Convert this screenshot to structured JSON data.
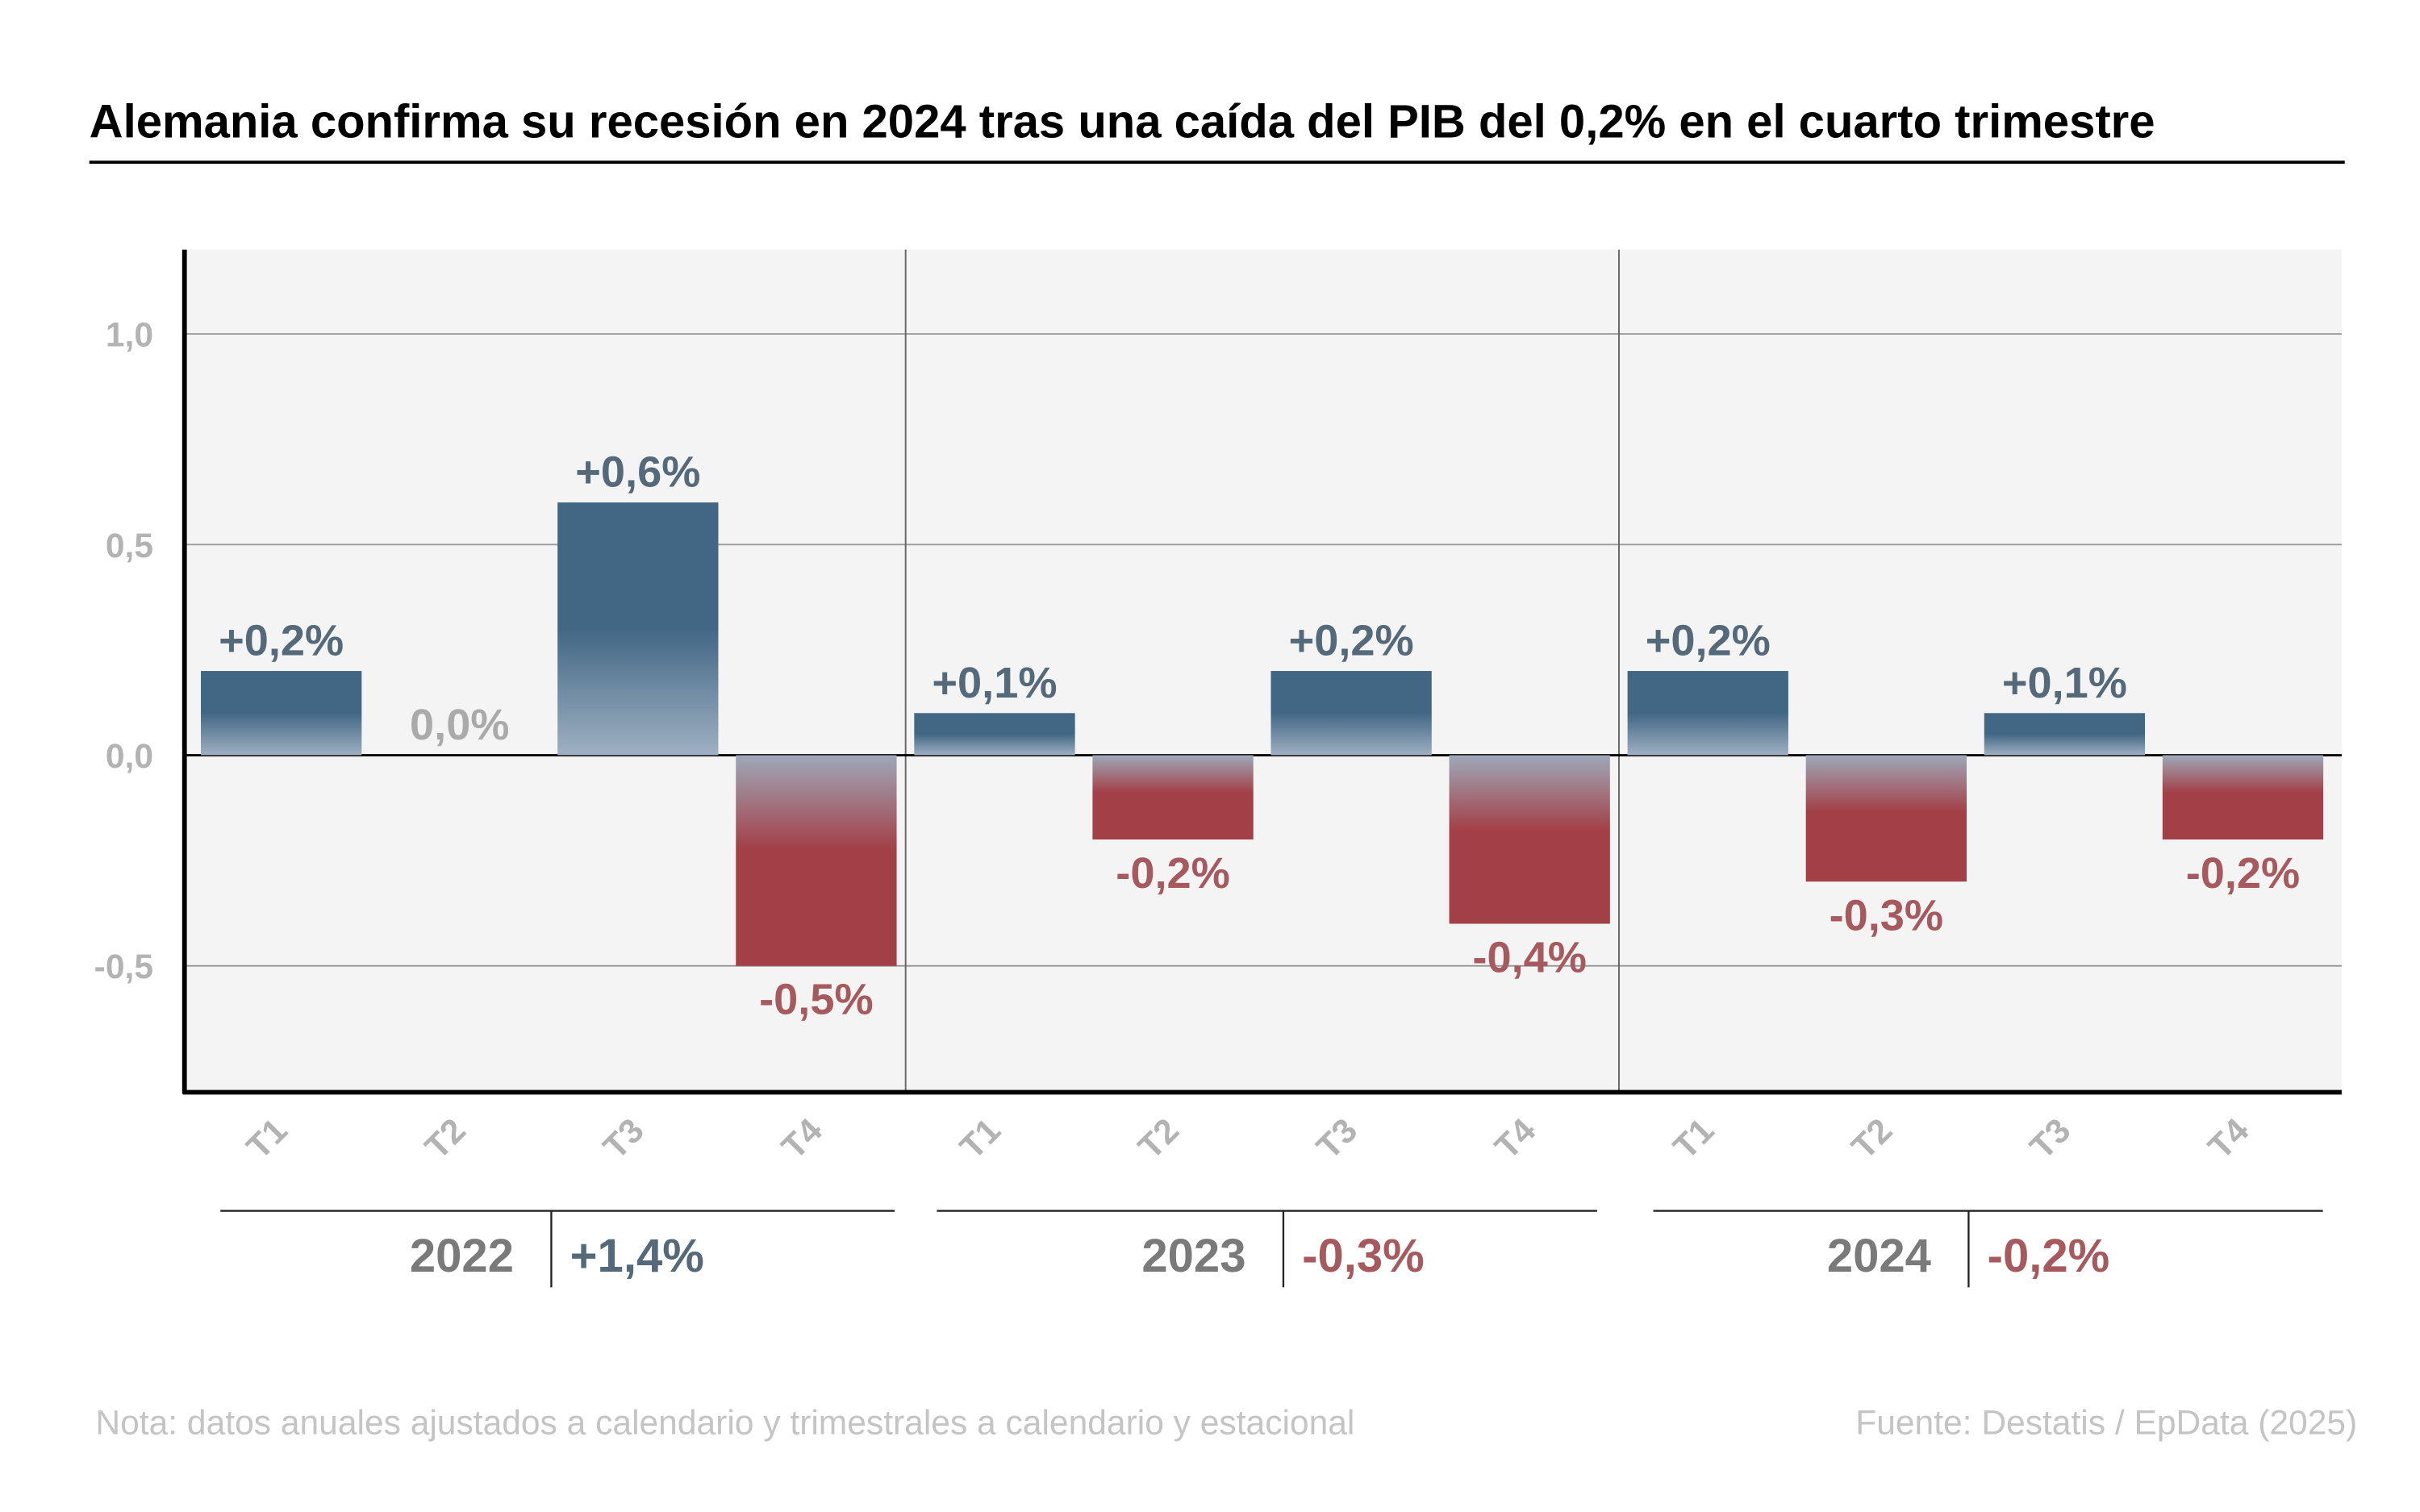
{
  "title": "Alemania confirma su recesión en 2024 tras una caída del PIB del 0,2% en el cuarto trimestre",
  "chart_data": {
    "type": "bar",
    "title": "Alemania confirma su recesión en 2024 tras una caída del PIB del 0,2% en el cuarto trimestre",
    "xlabel": "",
    "ylabel": "",
    "ylim": [
      -0.8,
      1.2
    ],
    "grid": true,
    "yticks": [
      1.0,
      0.5,
      0.0,
      -0.5
    ],
    "ytick_labels": [
      "1,0",
      "0,5",
      "0,0",
      "-0,5"
    ],
    "categories": [
      "T1",
      "T2",
      "T3",
      "T4",
      "T1",
      "T2",
      "T3",
      "T4",
      "T1",
      "T2",
      "T3",
      "T4"
    ],
    "values": [
      0.2,
      0.0,
      0.6,
      -0.5,
      0.1,
      -0.2,
      0.2,
      -0.4,
      0.2,
      -0.3,
      0.1,
      -0.2
    ],
    "data_labels": [
      "+0,2%",
      "0,0%",
      "+0,6%",
      "-0,5%",
      "+0,1%",
      "-0,2%",
      "+0,2%",
      "-0,4%",
      "+0,2%",
      "-0,3%",
      "+0,1%",
      "-0,2%"
    ],
    "groups": [
      {
        "year": "2022",
        "annual_label": "+1,4%",
        "annual_value": 1.4
      },
      {
        "year": "2023",
        "annual_label": "-0,3%",
        "annual_value": -0.3
      },
      {
        "year": "2024",
        "annual_label": "-0,2%",
        "annual_value": -0.2
      }
    ],
    "colors": {
      "positive_bar": "#426785",
      "positive_fade": "#9fb0c2",
      "negative_bar": "#a33f47",
      "negative_fade": "#9ea8b8",
      "positive_label": "#54697a",
      "negative_label": "#a65a5e",
      "zero_label": "#aaaaaa",
      "plot_background": "#f4f4f4"
    }
  },
  "footer": {
    "note": "Nota: datos anuales ajustados a calendario y trimestrales a calendario y estacional",
    "source": "Fuente: Destatis / EpData (2025)"
  }
}
